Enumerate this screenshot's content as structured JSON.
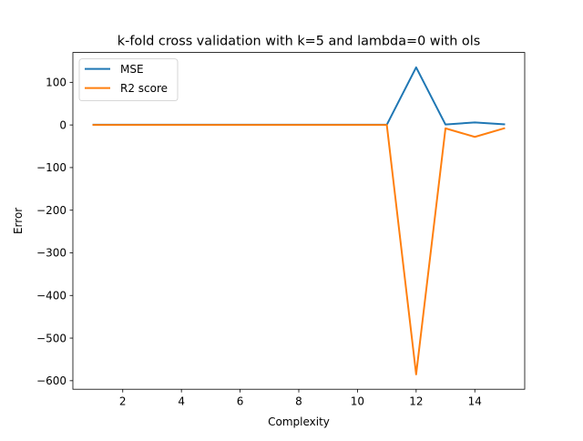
{
  "chart_data": {
    "type": "line",
    "title": "k-fold cross validation with k=5 and lambda=0 with ols",
    "xlabel": "Complexity",
    "ylabel": "Error",
    "xlim": [
      0.3,
      15.7
    ],
    "ylim": [
      -620,
      170
    ],
    "xticks": [
      2,
      4,
      6,
      8,
      10,
      12,
      14
    ],
    "yticks": [
      100,
      0,
      -100,
      -200,
      -300,
      -400,
      -500,
      -600
    ],
    "grid": false,
    "legend_position": "top-left",
    "x": [
      1,
      2,
      3,
      4,
      5,
      6,
      7,
      8,
      9,
      10,
      11,
      12,
      13,
      14,
      15
    ],
    "series": [
      {
        "name": "MSE",
        "color": "#1f77b4",
        "values": [
          0.5,
          0.5,
          0.5,
          0.5,
          0.5,
          0.5,
          0.5,
          0.5,
          0.5,
          0.5,
          0.5,
          135,
          1,
          6,
          1.5
        ]
      },
      {
        "name": "R2 score",
        "color": "#ff7f0e",
        "values": [
          0,
          0,
          0,
          0,
          0,
          0,
          0,
          0,
          0,
          0,
          0,
          -585,
          -8,
          -28,
          -8
        ]
      }
    ]
  }
}
